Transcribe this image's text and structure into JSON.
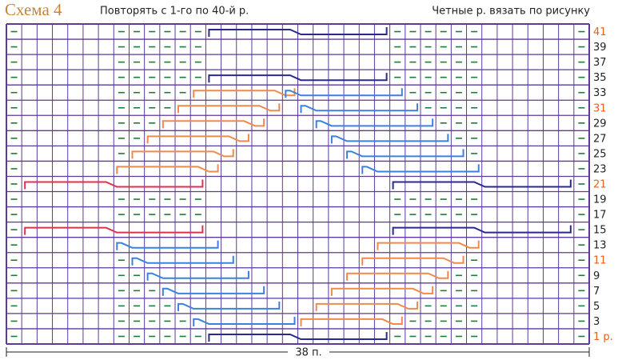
{
  "header": {
    "title": "Схема 4",
    "instruction": "Повторять с 1-го по 40-й р.",
    "note": "Четные р. вязать по рисунку"
  },
  "row_labels": [
    {
      "label": "41",
      "color": "#e8601c"
    },
    {
      "label": "39",
      "color": "#222222"
    },
    {
      "label": "37",
      "color": "#222222"
    },
    {
      "label": "35",
      "color": "#222222"
    },
    {
      "label": "33",
      "color": "#222222"
    },
    {
      "label": "31",
      "color": "#e8601c"
    },
    {
      "label": "29",
      "color": "#222222"
    },
    {
      "label": "27",
      "color": "#222222"
    },
    {
      "label": "25",
      "color": "#222222"
    },
    {
      "label": "23",
      "color": "#222222"
    },
    {
      "label": "21",
      "color": "#e8601c"
    },
    {
      "label": "19",
      "color": "#222222"
    },
    {
      "label": "17",
      "color": "#222222"
    },
    {
      "label": "15",
      "color": "#222222"
    },
    {
      "label": "13",
      "color": "#222222"
    },
    {
      "label": "11",
      "color": "#e8601c"
    },
    {
      "label": "9",
      "color": "#222222"
    },
    {
      "label": "7",
      "color": "#222222"
    },
    {
      "label": "5",
      "color": "#222222"
    },
    {
      "label": "3",
      "color": "#222222"
    },
    {
      "label": "1 р.",
      "color": "#e8601c"
    }
  ],
  "stitch_count": "38 п."
}
